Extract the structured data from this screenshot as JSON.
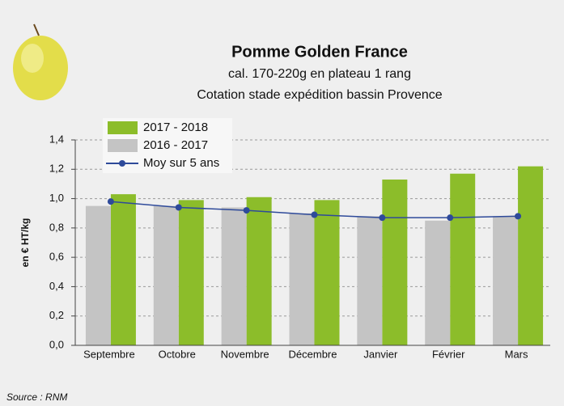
{
  "chart_data": {
    "type": "bar",
    "title": "Pomme Golden France",
    "subtitle": [
      "cal. 170-220g en plateau 1 rang",
      "Cotation stade expédition bassin Provence"
    ],
    "y_label": "en € HT/kg",
    "source": "Source : RNM",
    "categories": [
      "Septembre",
      "Octobre",
      "Novembre",
      "Décembre",
      "Janvier",
      "Février",
      "Mars"
    ],
    "series": [
      {
        "name": "2017 - 2018",
        "color": "#8cbd2a",
        "type": "bar",
        "values": [
          1.03,
          0.99,
          1.01,
          0.99,
          1.13,
          1.17,
          1.22
        ]
      },
      {
        "name": "2016 - 2017",
        "color": "#c4c4c4",
        "type": "bar",
        "values": [
          0.95,
          0.95,
          0.94,
          0.9,
          0.88,
          0.85,
          0.88
        ]
      },
      {
        "name": "Moy sur 5 ans",
        "color": "#2e4a9a",
        "type": "line",
        "values": [
          0.98,
          0.94,
          0.92,
          0.89,
          0.87,
          0.87,
          0.88
        ]
      }
    ],
    "ylim": [
      0,
      1.4
    ],
    "yticks": [
      {
        "value": 0,
        "label": "0,0"
      },
      {
        "value": 0.2,
        "label": "0,2"
      },
      {
        "value": 0.4,
        "label": "0,4"
      },
      {
        "value": 0.6,
        "label": "0,6"
      },
      {
        "value": 0.8,
        "label": "0,8"
      },
      {
        "value": 1.0,
        "label": "1,0"
      },
      {
        "value": 1.2,
        "label": "1,2"
      },
      {
        "value": 1.4,
        "label": "1,4"
      }
    ],
    "grid": true
  }
}
